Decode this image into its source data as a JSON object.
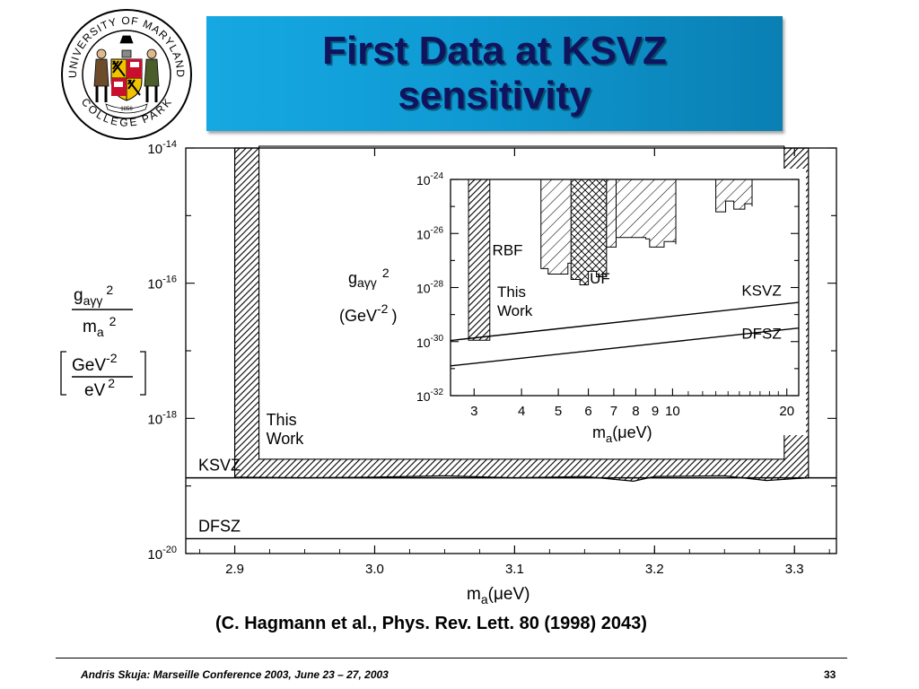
{
  "slide": {
    "title_line1": "First Data at KSVZ",
    "title_line2": "sensitivity",
    "citation": "(C. Hagmann et al., Phys. Rev. Lett. 80 (1998) 2043)",
    "footer": "Andris Skuja: Marseille Conference 2003, June 23 – 27, 2003",
    "page_number": "33",
    "logo": {
      "top_text": "UNIVERSITY OF MARYLAND",
      "bottom_text": "COLLEGE PARK",
      "ribbon_text": "1856",
      "icon": "university-seal",
      "colors": [
        "#000000",
        "#f2c400",
        "#c8102e",
        "#ffffff"
      ]
    },
    "accent_color": "#0f9ad3",
    "title_color": "#10135e"
  },
  "chart_data": [
    {
      "type": "area",
      "title": "",
      "ylabel_html": "g_aγγ^2 / m_a^2 [GeV^-2 / eV^2]",
      "ylabel": {
        "num_base": "g",
        "num_sub": "aγγ",
        "num_sup": "2",
        "den_base": "m",
        "den_sub": "a",
        "den_sup": "2",
        "unit_num": "GeV",
        "unit_num_sup": "-2",
        "unit_den": "eV",
        "unit_den_sup": "2"
      },
      "xlabel": {
        "base": "m",
        "sub": "a",
        "rest": "(μeV)"
      },
      "xlim": [
        2.865,
        3.33
      ],
      "y_log_exponents": [
        -20,
        -14
      ],
      "y_scale": "log",
      "xticks": [
        2.9,
        3.0,
        3.1,
        3.2,
        3.3
      ],
      "xtick_labels": [
        "2.9",
        "3.0",
        "3.1",
        "3.2",
        "3.3"
      ],
      "yticks": [
        {
          "base": "10",
          "exp": "-14",
          "value_exp": -14
        },
        {
          "base": "10",
          "exp": "-16",
          "value_exp": -16
        },
        {
          "base": "10",
          "exp": "-18",
          "value_exp": -18
        },
        {
          "base": "10",
          "exp": "-20",
          "value_exp": -20
        }
      ],
      "excluded_region": {
        "name": "This Work",
        "label_lines": [
          "This",
          "Work"
        ],
        "x_range": [
          2.9,
          3.31
        ],
        "lower_limit_exp": [
          [
            2.9,
            -18.87
          ],
          [
            2.95,
            -18.88
          ],
          [
            3.0,
            -18.87
          ],
          [
            3.05,
            -18.85
          ],
          [
            3.1,
            -18.88
          ],
          [
            3.15,
            -18.86
          ],
          [
            3.185,
            -18.93
          ],
          [
            3.2,
            -18.86
          ],
          [
            3.25,
            -18.85
          ],
          [
            3.28,
            -18.92
          ],
          [
            3.31,
            -18.88
          ]
        ]
      },
      "theory_lines": [
        {
          "name": "KSVZ",
          "log_value": -18.88
        },
        {
          "name": "DFSZ",
          "log_value": -19.78
        }
      ]
    },
    {
      "type": "area",
      "title": "",
      "ylabel": {
        "base": "g",
        "sub": "aγγ",
        "sup": "2",
        "unit": "(GeV",
        "unit_sup": "-2",
        "unit_close": ")"
      },
      "xlabel": {
        "base": "m",
        "sub": "a",
        "rest": "(μeV)"
      },
      "x_scale": "log",
      "xlim": [
        2.6,
        21.5
      ],
      "y_scale": "log",
      "y_log_exponents": [
        -32,
        -24
      ],
      "xticks": [
        3,
        4,
        5,
        6,
        7,
        8,
        9,
        10,
        20
      ],
      "xtick_labels": [
        "3",
        "4",
        "5",
        "6",
        "7",
        "8",
        "9",
        "10",
        "20"
      ],
      "yticks": [
        {
          "base": "10",
          "exp": "-24",
          "value_exp": -24
        },
        {
          "base": "10",
          "exp": "-26",
          "value_exp": -26
        },
        {
          "base": "10",
          "exp": "-28",
          "value_exp": -28
        },
        {
          "base": "10",
          "exp": "-30",
          "value_exp": -30
        },
        {
          "base": "10",
          "exp": "-32",
          "value_exp": -32
        }
      ],
      "regions": [
        {
          "name": "This Work",
          "label_lines": [
            "This",
            "Work"
          ],
          "x_range": [
            2.9,
            3.3
          ],
          "lower_limit_exp": -29.95
        },
        {
          "name": "RBF",
          "label_lines": [
            "RBF"
          ],
          "x_range": [
            4.5,
            5.5
          ],
          "lower_limit_exp": [
            [
              4.5,
              -27.3
            ],
            [
              4.7,
              -27.5
            ],
            [
              5.0,
              -27.5
            ],
            [
              5.3,
              -27.1
            ],
            [
              5.5,
              -27.2
            ]
          ]
        },
        {
          "name": "UF",
          "label_lines": [
            "UF"
          ],
          "x_range": [
            5.4,
            6.7
          ],
          "lower_limit_exp": [
            [
              5.4,
              -27.7
            ],
            [
              5.7,
              -27.9
            ],
            [
              6.0,
              -27.4
            ],
            [
              6.3,
              -27.6
            ],
            [
              6.7,
              -27.0
            ]
          ]
        },
        {
          "name": "RBF",
          "label_lines": [],
          "x_range": [
            6.7,
            7.1
          ],
          "lower_limit_exp": [
            [
              6.7,
              -26.5
            ],
            [
              7.1,
              -26.5
            ]
          ]
        },
        {
          "name": "RBF",
          "label_lines": [],
          "x_range": [
            7.1,
            10.2
          ],
          "lower_limit_exp": [
            [
              7.1,
              -26.15
            ],
            [
              8.5,
              -26.2
            ],
            [
              8.7,
              -26.5
            ],
            [
              9.5,
              -26.3
            ],
            [
              10.2,
              -26.4
            ]
          ]
        },
        {
          "name": "RBF",
          "label_lines": [],
          "x_range": [
            13.0,
            16.2
          ],
          "lower_limit_exp": [
            [
              13.0,
              -25.2
            ],
            [
              13.8,
              -24.8
            ],
            [
              14.5,
              -25.1
            ],
            [
              15.5,
              -24.9
            ],
            [
              16.2,
              -25.0
            ]
          ]
        }
      ],
      "theory_lines": [
        {
          "name": "KSVZ",
          "log_value_at_x": [
            [
              2.6,
              -29.96
            ],
            [
              21.5,
              -28.55
            ]
          ]
        },
        {
          "name": "DFSZ",
          "log_value_at_x": [
            [
              2.6,
              -30.9
            ],
            [
              21.5,
              -29.5
            ]
          ]
        }
      ]
    }
  ]
}
